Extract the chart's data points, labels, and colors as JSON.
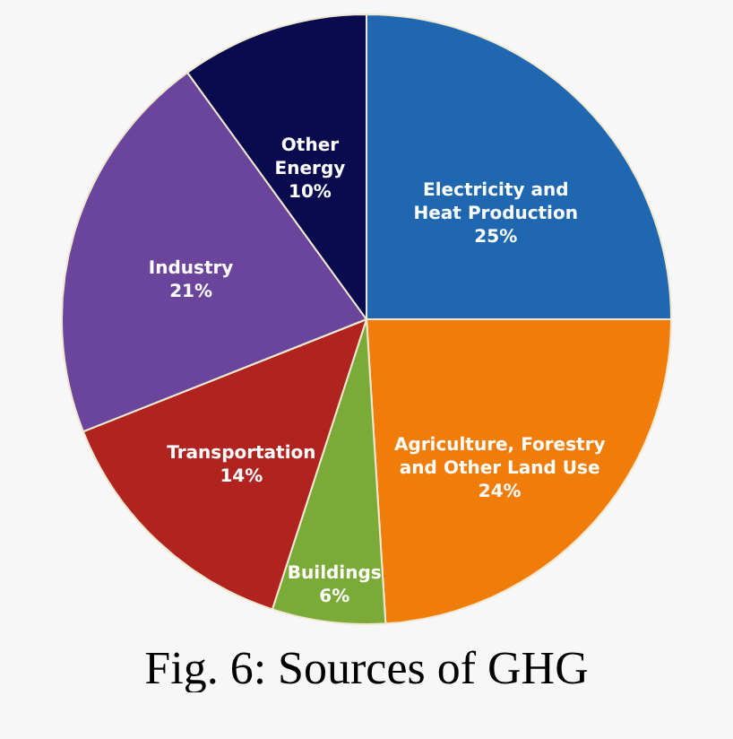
{
  "chart_data": {
    "type": "pie",
    "categories": [
      "Electricity and\nHeat Production",
      "Agriculture, Forestry\nand Other Land Use",
      "Buildings",
      "Transportation",
      "Industry",
      "Other\nEnergy"
    ],
    "values": [
      25,
      24,
      6,
      14,
      21,
      10
    ],
    "value_labels": [
      "25%",
      "24%",
      "6%",
      "14%",
      "21%",
      "10%"
    ],
    "colors": [
      "#1f67b0",
      "#f07d0a",
      "#7aaa37",
      "#b0231f",
      "#6a459b",
      "#0a0a4f"
    ],
    "annotations": [
      "Fig. 6: Sources of GHG"
    ]
  }
}
